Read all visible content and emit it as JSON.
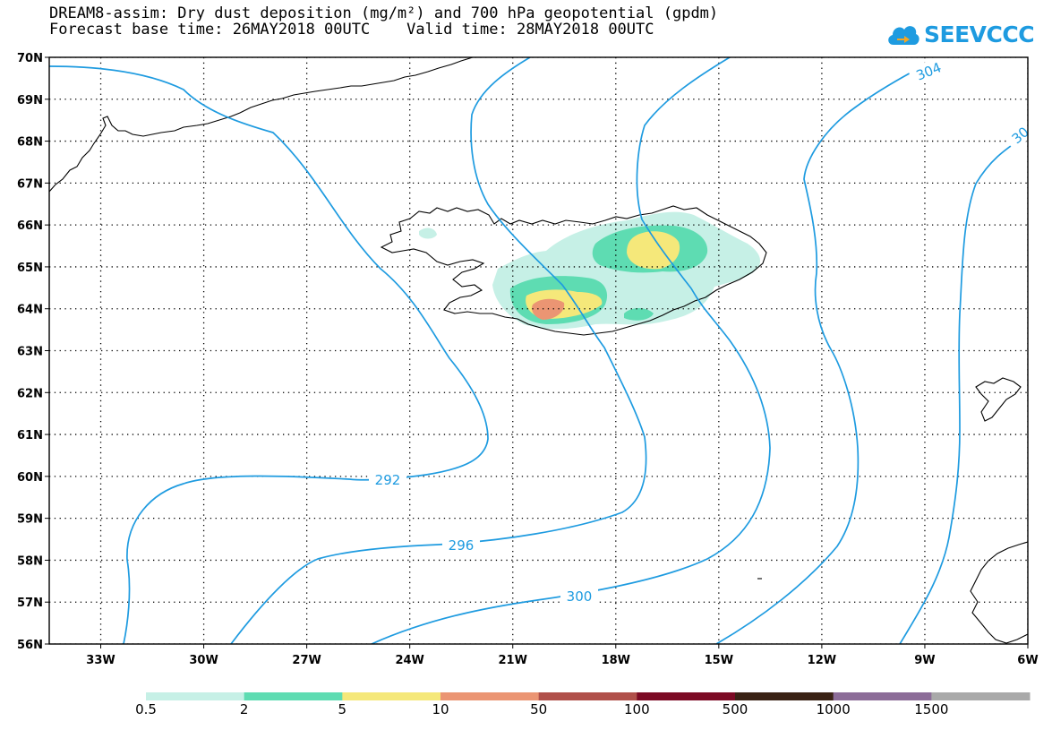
{
  "header": {
    "title_line1": "DREAM8-assim: Dry dust deposition (mg/m²) and 700 hPa geopotential (gpdm)",
    "title_line2": "Forecast base time: 26MAY2018 00UTC    Valid time: 28MAY2018 00UTC"
  },
  "logo": {
    "text": "SEEVCCC",
    "icon": "cloud-icon",
    "color": "#1e9be0"
  },
  "map": {
    "lon_range": [
      -34.5,
      -6
    ],
    "lat_range": [
      56,
      70
    ],
    "grid": "dotted",
    "lat_ticks": [
      "70N",
      "69N",
      "68N",
      "67N",
      "66N",
      "65N",
      "64N",
      "63N",
      "62N",
      "61N",
      "60N",
      "59N",
      "58N",
      "57N",
      "56N"
    ],
    "lon_ticks": [
      "33W",
      "30W",
      "27W",
      "24W",
      "21W",
      "18W",
      "15W",
      "12W",
      "9W",
      "6W"
    ],
    "contour_color": "#1e9be0",
    "contour_labels": [
      "292",
      "296",
      "300",
      "304",
      "30"
    ]
  },
  "colorbar": {
    "colors": [
      "#c6f0e6",
      "#5edcb2",
      "#f5e87a",
      "#eb9573",
      "#b0504a",
      "#7c0a24",
      "#3a2215",
      "#8c6c98",
      "#a9a9a9"
    ],
    "labels": [
      "0.5",
      "2",
      "5",
      "10",
      "50",
      "100",
      "500",
      "1000",
      "1500"
    ]
  }
}
